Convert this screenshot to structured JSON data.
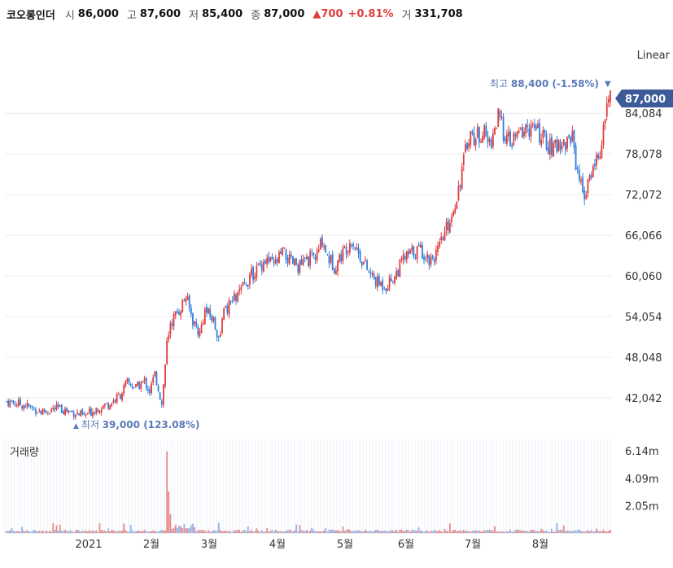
{
  "header": {
    "name": "코오롱인더",
    "open_label": "시",
    "open": "86,000",
    "high_label": "고",
    "high": "87,600",
    "low_label": "저",
    "low": "85,400",
    "close_label": "종",
    "close": "87,000",
    "change": "700",
    "change_pct": "+0.81%",
    "volume_label": "거",
    "volume": "331,708"
  },
  "scale_mode": "Linear",
  "colors": {
    "up": "#e03c3c",
    "down": "#2f7ee0",
    "price_tag": "#3d5a99",
    "annotation": "#5a7ab8"
  },
  "chart_data": {
    "type": "candlestick",
    "y_ticks": [
      "84,084",
      "78,078",
      "72,072",
      "66,066",
      "60,060",
      "54,054",
      "48,048",
      "42,042"
    ],
    "y_tick_values": [
      84084,
      78078,
      72072,
      66066,
      60060,
      54054,
      48048,
      42042
    ],
    "ylim": [
      36500,
      90000
    ],
    "current_price": "87,000",
    "max_annotation": {
      "label": "최고",
      "value": "88,400",
      "pct": "(-1.58%)"
    },
    "min_annotation": {
      "label": "최저",
      "value": "39,000",
      "pct": "(123.08%)"
    },
    "x_ticks": [
      "2021",
      "2월",
      "3월",
      "4월",
      "5월",
      "6월",
      "7월",
      "8월"
    ],
    "volume_title": "거래량",
    "volume_ticks": [
      "6.14m",
      "4.09m",
      "2.05m"
    ],
    "volume_tick_values": [
      6.14,
      4.09,
      2.05
    ],
    "vol_max": 7.0,
    "close_path": [
      [
        0,
        41500
      ],
      [
        10,
        41000
      ],
      [
        20,
        40000
      ],
      [
        30,
        40500
      ],
      [
        40,
        39800
      ],
      [
        45,
        39300
      ],
      [
        52,
        40500
      ],
      [
        60,
        41200
      ],
      [
        66,
        42500
      ],
      [
        70,
        44300
      ],
      [
        75,
        43500
      ],
      [
        80,
        44500
      ],
      [
        83,
        43000
      ],
      [
        86,
        45500
      ],
      [
        88,
        43500
      ],
      [
        90,
        41000
      ],
      [
        93,
        50000
      ],
      [
        96,
        53500
      ],
      [
        100,
        55000
      ],
      [
        104,
        57000
      ],
      [
        108,
        53500
      ],
      [
        112,
        51500
      ],
      [
        115,
        55000
      ],
      [
        120,
        53500
      ],
      [
        123,
        51000
      ],
      [
        126,
        54500
      ],
      [
        130,
        56000
      ],
      [
        135,
        57500
      ],
      [
        140,
        59500
      ],
      [
        145,
        61000
      ],
      [
        150,
        62500
      ],
      [
        155,
        61500
      ],
      [
        160,
        63500
      ],
      [
        165,
        62000
      ],
      [
        170,
        61500
      ],
      [
        175,
        62500
      ],
      [
        180,
        63000
      ],
      [
        183,
        65500
      ],
      [
        186,
        63000
      ],
      [
        190,
        61500
      ],
      [
        195,
        63500
      ],
      [
        200,
        65500
      ],
      [
        205,
        63000
      ],
      [
        210,
        60500
      ],
      [
        215,
        59000
      ],
      [
        220,
        58700
      ],
      [
        225,
        60000
      ],
      [
        230,
        62500
      ],
      [
        235,
        63500
      ],
      [
        240,
        64000
      ],
      [
        245,
        62500
      ],
      [
        250,
        63500
      ],
      [
        255,
        67000
      ],
      [
        258,
        69000
      ],
      [
        262,
        73000
      ],
      [
        265,
        77000
      ],
      [
        268,
        81000
      ],
      [
        272,
        80500
      ],
      [
        276,
        81500
      ],
      [
        280,
        79500
      ],
      [
        285,
        83500
      ],
      [
        288,
        81500
      ],
      [
        292,
        79500
      ],
      [
        297,
        81000
      ],
      [
        302,
        82000
      ],
      [
        307,
        81500
      ],
      [
        312,
        80000
      ],
      [
        317,
        78500
      ],
      [
        320,
        80000
      ],
      [
        324,
        79500
      ],
      [
        328,
        81000
      ],
      [
        330,
        77000
      ],
      [
        333,
        73500
      ],
      [
        336,
        72000
      ],
      [
        339,
        75500
      ],
      [
        342,
        77500
      ],
      [
        345,
        79000
      ],
      [
        348,
        85500
      ],
      [
        350,
        87000
      ]
    ]
  }
}
